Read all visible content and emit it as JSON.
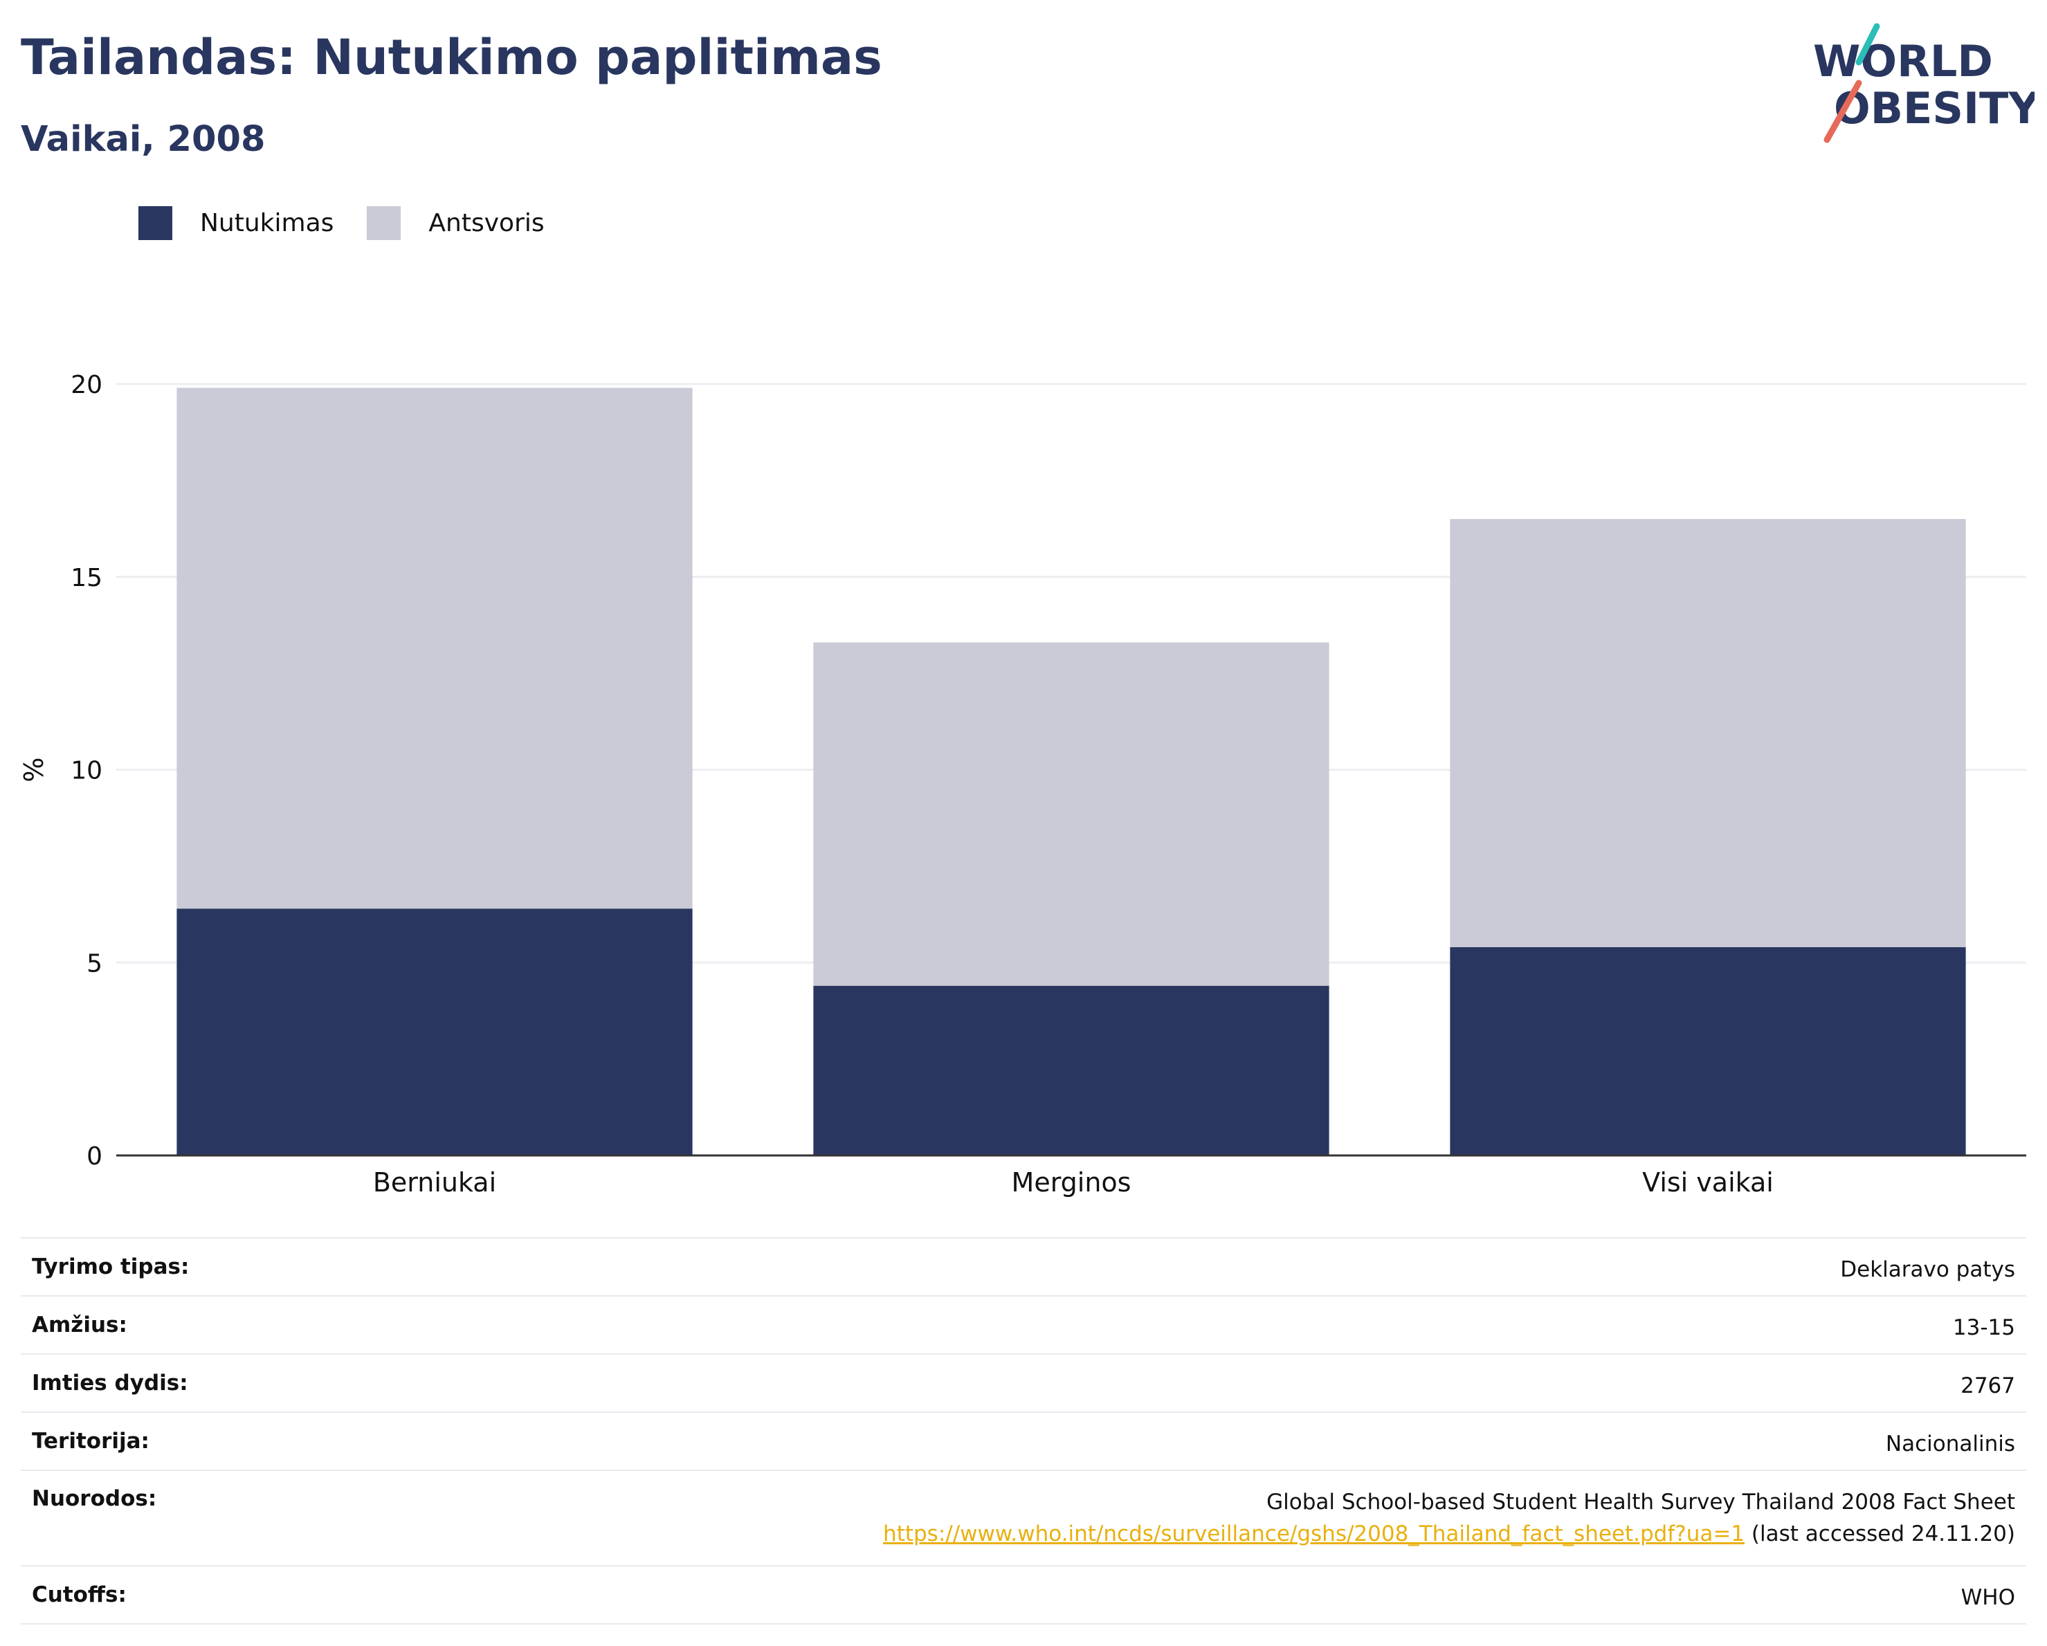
{
  "header": {
    "title": "Tailandas: Nutukimo paplitimas",
    "subtitle": "Vaikai, 2008"
  },
  "logo": {
    "line1": "WORLD",
    "line2": "OBESITY"
  },
  "colors": {
    "obesity": "#29365f",
    "overweight": "#cacbd6",
    "grid": "#eceef2",
    "axis": "#333333",
    "link": "#e8b00f",
    "logo_teal": "#2bbdb7",
    "logo_coral": "#e66a5a"
  },
  "chart_data": {
    "type": "bar",
    "stacked": true,
    "categories": [
      "Berniukai",
      "Merginos",
      "Visi vaikai"
    ],
    "series": [
      {
        "name": "Nutukimas",
        "values": [
          6.4,
          4.4,
          5.4
        ]
      },
      {
        "name": "Antsvoris",
        "values": [
          13.5,
          8.9,
          11.1
        ]
      }
    ],
    "ylabel": "%",
    "ylim": [
      0,
      20
    ],
    "yticks": [
      0,
      5,
      10,
      15,
      20
    ],
    "grid": true,
    "legend": "top-left"
  },
  "info": {
    "rows": [
      {
        "label": "Tyrimo tipas:",
        "value": "Deklaravo patys"
      },
      {
        "label": "Amžius:",
        "value": "13-15"
      },
      {
        "label": "Imties dydis:",
        "value": "2767"
      },
      {
        "label": "Teritorija:",
        "value": "Nacionalinis"
      }
    ],
    "references": {
      "label": "Nuorodos:",
      "text": "Global School-based Student Health Survey Thailand 2008 Fact Sheet",
      "link": "https://www.who.int/ncds/surveillance/gshs/2008_Thailand_fact_sheet.pdf?ua=1",
      "suffix": "(last accessed 24.11.20)"
    },
    "cutoffs": {
      "label": "Cutoffs:",
      "value": "WHO"
    }
  }
}
